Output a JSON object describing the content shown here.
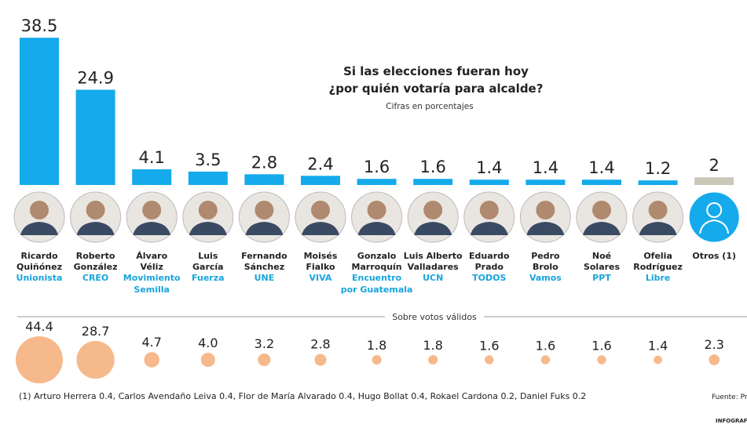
{
  "chart_data": {
    "type": "bar",
    "title": "Si las elecciones fueran hoy ¿por quién votaría para alcalde?",
    "title_lines": [
      "Si las elecciones fueran hoy",
      "¿por quién votaría para alcalde?"
    ],
    "subtitle": "Cifras en porcentajes",
    "candidates": [
      {
        "first": "Ricardo",
        "last": "Quiñónez",
        "party": [
          "Unionista"
        ],
        "value": 38.5,
        "valid": 44.4
      },
      {
        "first": "Roberto",
        "last": "González",
        "party": [
          "CREO"
        ],
        "value": 24.9,
        "valid": 28.7
      },
      {
        "first": "Álvaro",
        "last": "Véliz",
        "party": [
          "Movimiento",
          "Semilla"
        ],
        "value": 4.1,
        "valid": 4.7
      },
      {
        "first": "Luis",
        "last": "García",
        "party": [
          "Fuerza"
        ],
        "value": 3.5,
        "valid": 4.0
      },
      {
        "first": "Fernando",
        "last": "Sánchez",
        "party": [
          "UNE"
        ],
        "value": 2.8,
        "valid": 3.2
      },
      {
        "first": "Moisés",
        "last": "Fialko",
        "party": [
          "VIVA"
        ],
        "value": 2.4,
        "valid": 2.8
      },
      {
        "first": "Gonzalo",
        "last": "Marroquín",
        "party": [
          "Encuentro",
          "por Guatemala"
        ],
        "value": 1.6,
        "valid": 1.8
      },
      {
        "first": "Luis Alberto",
        "last": "Valladares",
        "party": [
          "UCN"
        ],
        "value": 1.6,
        "valid": 1.8
      },
      {
        "first": "Eduardo",
        "last": "Prado",
        "party": [
          "TODOS"
        ],
        "value": 1.4,
        "valid": 1.6
      },
      {
        "first": "Pedro",
        "last": "Brolo",
        "party": [
          "Vamos"
        ],
        "value": 1.4,
        "valid": 1.6
      },
      {
        "first": "Noé",
        "last": "Solares",
        "party": [
          "PPT"
        ],
        "value": 1.4,
        "valid": 1.6
      },
      {
        "first": "Ofelia",
        "last": "Rodríguez",
        "party": [
          "Libre"
        ],
        "value": 1.2,
        "valid": 1.4
      },
      {
        "first": "Otros (1)",
        "last": "",
        "party": [],
        "value": 2,
        "valid": 2.3,
        "others": true
      }
    ],
    "second_series_label": "Sobre votos válidos",
    "footnote": "(1) Arturo Herrera 0.4, Carlos Avendaño Leiva 0.4, Flor de María Alvarado 0.4, Hugo Bollat 0.4, Rokael Cardona 0.2, Daniel Fuks 0.2",
    "source": "Fuente: Pr",
    "credit": "INFOGRAFÍ",
    "colors": {
      "bar": "#14aaeb",
      "others_bar": "#c9c7b8",
      "bubble": "#f6b98b",
      "party": "#18a4dc",
      "text": "#222222"
    }
  }
}
